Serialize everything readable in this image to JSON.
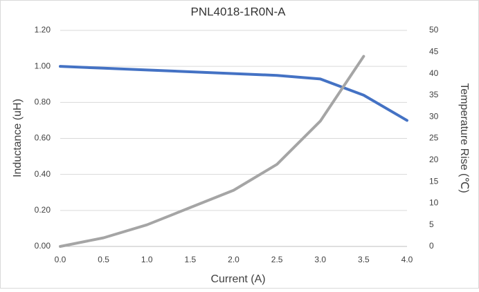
{
  "chart_data": {
    "type": "line",
    "title": "PNL4018-1R0N-A",
    "x_label": "Current (A)",
    "y_label": "Inductance (uH)",
    "y2_label": "Temperature Rise (℃)",
    "xlim": [
      0,
      4.0
    ],
    "xticks": [
      {
        "value": 0,
        "label": "0.0"
      },
      {
        "value": 0.5,
        "label": "0.5"
      },
      {
        "value": 1,
        "label": "1.0"
      },
      {
        "value": 1.5,
        "label": "1.5"
      },
      {
        "value": 2,
        "label": "2.0"
      },
      {
        "value": 2.5,
        "label": "2.5"
      },
      {
        "value": 3,
        "label": "3.0"
      },
      {
        "value": 3.5,
        "label": "3.5"
      },
      {
        "value": 4,
        "label": "4.0"
      }
    ],
    "ylim": [
      0,
      1.2
    ],
    "yticks": [
      {
        "value": 0,
        "label": "0.00"
      },
      {
        "value": 0.2,
        "label": "0.20"
      },
      {
        "value": 0.4,
        "label": "0.40"
      },
      {
        "value": 0.6,
        "label": "0.60"
      },
      {
        "value": 0.8,
        "label": "0.80"
      },
      {
        "value": 1,
        "label": "1.00"
      },
      {
        "value": 1.2,
        "label": "1.20"
      }
    ],
    "y2lim": [
      0,
      50
    ],
    "y2ticks": [
      0,
      5,
      10,
      15,
      20,
      25,
      30,
      35,
      40,
      45,
      50
    ],
    "grid": true,
    "series": [
      {
        "color": "#4472c4",
        "x": [
          0,
          0.5,
          1,
          1.5,
          2,
          2.5,
          3,
          3.5,
          4
        ],
        "values": [
          1.0,
          0.99,
          0.98,
          0.97,
          0.96,
          0.95,
          0.93,
          0.84,
          0.7
        ]
      },
      {
        "color": "#a5a5a5",
        "axis": "y2",
        "x": [
          0,
          0.5,
          1,
          1.5,
          2,
          2.5,
          3,
          3.5
        ],
        "values": [
          0,
          2,
          5,
          9,
          13,
          19,
          29,
          44
        ]
      }
    ]
  }
}
